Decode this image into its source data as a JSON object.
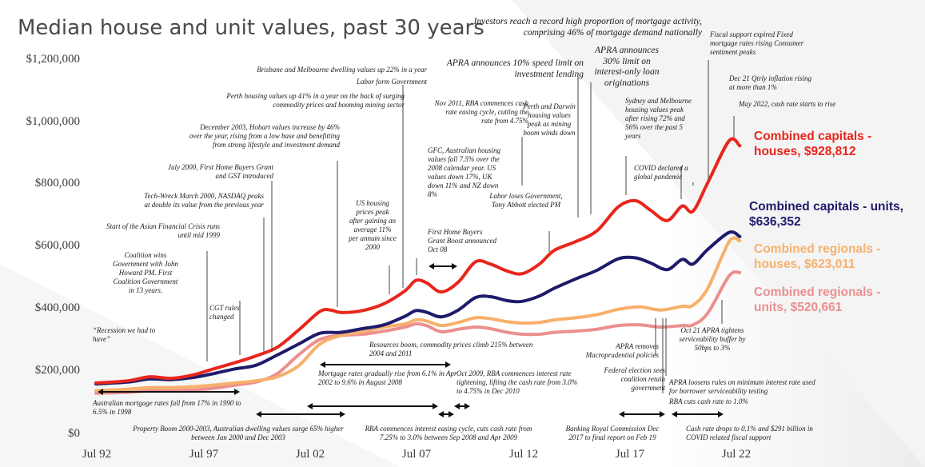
{
  "title": "Median house and unit values, past 30 years",
  "colors": {
    "houses": "#e8261c",
    "units": "#1e1b6b",
    "regional_houses": "#f7b06c",
    "regional_units": "#eb8f8f"
  },
  "chart_data": {
    "type": "line",
    "title": "Median house and unit values, past 30 years",
    "xlabel": "",
    "ylabel": "",
    "x_ticks": [
      "Jul 92",
      "Jul 97",
      "Jul 02",
      "Jul 07",
      "Jul 12",
      "Jul 17",
      "Jul 22"
    ],
    "y_ticks": [
      "$0",
      "$200,000",
      "$400,000",
      "$600,000",
      "$800,000",
      "$1,000,000",
      "$1,200,000"
    ],
    "ylim": [
      0,
      1200000
    ],
    "xlim": [
      1992.5,
      2023.0
    ],
    "grid": false,
    "series": [
      {
        "name": "Combined capitals - houses",
        "label": "Combined capitals -\nhouses, $928,812",
        "key": "houses",
        "points": [
          [
            1992.5,
            165000
          ],
          [
            1994,
            172000
          ],
          [
            1995,
            185000
          ],
          [
            1996,
            180000
          ],
          [
            1997,
            190000
          ],
          [
            1998,
            210000
          ],
          [
            1999,
            230000
          ],
          [
            2000,
            252000
          ],
          [
            2001,
            280000
          ],
          [
            2002,
            335000
          ],
          [
            2003,
            395000
          ],
          [
            2003.5,
            400000
          ],
          [
            2004,
            392000
          ],
          [
            2005,
            398000
          ],
          [
            2006,
            420000
          ],
          [
            2007,
            462000
          ],
          [
            2007.5,
            495000
          ],
          [
            2008,
            488000
          ],
          [
            2008.7,
            458000
          ],
          [
            2009.5,
            490000
          ],
          [
            2010.3,
            555000
          ],
          [
            2011,
            548000
          ],
          [
            2011.8,
            525000
          ],
          [
            2012.5,
            517000
          ],
          [
            2013.3,
            548000
          ],
          [
            2014,
            592000
          ],
          [
            2015,
            620000
          ],
          [
            2016,
            655000
          ],
          [
            2017,
            732000
          ],
          [
            2017.8,
            752000
          ],
          [
            2018.5,
            722000
          ],
          [
            2019.3,
            688000
          ],
          [
            2020,
            735000
          ],
          [
            2020.5,
            718000
          ],
          [
            2021.2,
            810000
          ],
          [
            2022.2,
            945000
          ],
          [
            2022.7,
            928812
          ]
        ]
      },
      {
        "name": "Combined capitals - units",
        "label": "Combined capitals - units,\n$636,352",
        "key": "units",
        "points": [
          [
            1992.5,
            162000
          ],
          [
            1994,
            168000
          ],
          [
            1995,
            178000
          ],
          [
            1996,
            176000
          ],
          [
            1997,
            182000
          ],
          [
            1998,
            195000
          ],
          [
            1999,
            210000
          ],
          [
            2000,
            222000
          ],
          [
            2001,
            255000
          ],
          [
            2002,
            290000
          ],
          [
            2003,
            325000
          ],
          [
            2004,
            328000
          ],
          [
            2005,
            340000
          ],
          [
            2006,
            352000
          ],
          [
            2007,
            380000
          ],
          [
            2007.5,
            398000
          ],
          [
            2008,
            393000
          ],
          [
            2008.7,
            378000
          ],
          [
            2009.5,
            400000
          ],
          [
            2010.3,
            440000
          ],
          [
            2011,
            443000
          ],
          [
            2011.8,
            430000
          ],
          [
            2012.5,
            428000
          ],
          [
            2013.3,
            445000
          ],
          [
            2014,
            470000
          ],
          [
            2015,
            500000
          ],
          [
            2016,
            528000
          ],
          [
            2017,
            565000
          ],
          [
            2017.8,
            568000
          ],
          [
            2018.5,
            552000
          ],
          [
            2019.3,
            530000
          ],
          [
            2020,
            563000
          ],
          [
            2020.5,
            548000
          ],
          [
            2021.2,
            595000
          ],
          [
            2022.2,
            650000
          ],
          [
            2022.7,
            636352
          ]
        ]
      },
      {
        "name": "Combined regionals - houses",
        "label": "Combined regionals -\nhouses, $623,011",
        "key": "regional_houses",
        "points": [
          [
            1992.5,
            140000
          ],
          [
            1994,
            145000
          ],
          [
            1995,
            150000
          ],
          [
            1996,
            150000
          ],
          [
            1997,
            153000
          ],
          [
            1998,
            158000
          ],
          [
            1999,
            165000
          ],
          [
            2000,
            172000
          ],
          [
            2001,
            185000
          ],
          [
            2002,
            220000
          ],
          [
            2003,
            290000
          ],
          [
            2004,
            318000
          ],
          [
            2005,
            330000
          ],
          [
            2006,
            345000
          ],
          [
            2007,
            355000
          ],
          [
            2007.5,
            368000
          ],
          [
            2008,
            365000
          ],
          [
            2008.7,
            350000
          ],
          [
            2009.5,
            360000
          ],
          [
            2010.3,
            375000
          ],
          [
            2011,
            372000
          ],
          [
            2011.8,
            362000
          ],
          [
            2012.5,
            358000
          ],
          [
            2013.3,
            360000
          ],
          [
            2014,
            368000
          ],
          [
            2015,
            375000
          ],
          [
            2016,
            385000
          ],
          [
            2017,
            402000
          ],
          [
            2018,
            410000
          ],
          [
            2019,
            400000
          ],
          [
            2020,
            412000
          ],
          [
            2020.5,
            415000
          ],
          [
            2021.2,
            470000
          ],
          [
            2022.2,
            620000
          ],
          [
            2022.7,
            623011
          ]
        ]
      },
      {
        "name": "Combined regionals - units",
        "label": "Combined regionals -\nunits, $520,661",
        "key": "regional_units",
        "points": [
          [
            1992.5,
            132000
          ],
          [
            1994,
            135000
          ],
          [
            1995,
            140000
          ],
          [
            1996,
            140000
          ],
          [
            1997,
            142000
          ],
          [
            1998,
            148000
          ],
          [
            1999,
            158000
          ],
          [
            2000,
            168000
          ],
          [
            2001,
            195000
          ],
          [
            2002,
            255000
          ],
          [
            2003,
            305000
          ],
          [
            2004,
            318000
          ],
          [
            2005,
            322000
          ],
          [
            2006,
            332000
          ],
          [
            2007,
            345000
          ],
          [
            2007.5,
            355000
          ],
          [
            2008,
            350000
          ],
          [
            2008.7,
            330000
          ],
          [
            2009.5,
            338000
          ],
          [
            2010.3,
            345000
          ],
          [
            2011,
            340000
          ],
          [
            2011.8,
            328000
          ],
          [
            2012.5,
            322000
          ],
          [
            2013.3,
            322000
          ],
          [
            2014,
            328000
          ],
          [
            2015,
            332000
          ],
          [
            2016,
            338000
          ],
          [
            2017,
            350000
          ],
          [
            2018,
            352000
          ],
          [
            2019,
            345000
          ],
          [
            2020,
            350000
          ],
          [
            2020.5,
            352000
          ],
          [
            2021.2,
            390000
          ],
          [
            2022.2,
            510000
          ],
          [
            2022.7,
            520661
          ]
        ]
      }
    ]
  },
  "annotations": [
    "“Recession we had to have”",
    "Start of the Asian Financial Crisis runs until mid 1999",
    "Coalition wins Government with John Howard PM. First Coalition Government in 13 years.",
    "CGT rules changed",
    "Tech-Wreck March 2000, NASDAQ peaks at double its value from the previous year",
    "July 2000, First Home Buyers Grant and GST introduced",
    "December 2003, Hobart values increase by 46% over the year, rising from a low base and benefitting from strong lifestyle and investment demand",
    "Perth housing values up 41% in a year on the back of surging commodity prices and booming mining sector",
    "Brisbane and Melbourne dwelling values up 22% in a year",
    "Labor form Government",
    "US housing prices peak after gaining an average 11% per annum since 2000",
    "GFC, Australian housing values fall 7.5% over the 2008 calendar year. US values down 17%, UK down 11% and NZ down 8%",
    "First Home Buyers Grant Boost announced Oct 08",
    "Nov 2011, RBA commences cash rate easing cycle, cutting the rate from 4.75%",
    "Labor loses Government, Tony Abbott elected PM",
    "Perth and Darwin housing values peak as mining boom winds down",
    "Investors reach a record high proportion of mortgage activity, comprising 46% of mortgage demand nationally",
    "APRA announces 10% speed limit on investment lending",
    "APRA announces 30% limit on interest-only loan originations",
    "Sydney and Melbourne housing values peak after rising 72% and 56% over the past 5 years",
    "COVID declared a global pandemic",
    "Fiscal support expired Fixed mortgage rates rising Consumer sentiment peaks",
    "Dec 21 Qtrly inflation rising at more than 1%",
    "May 2022, cash rate starts to rise",
    "Oct 21 APRA tightens serviceability buffer by 50bps to 3%",
    "APRA removes Macroprudential policies",
    "Federal election sees coalition retain government",
    "APRA loosens rules on minimum interest rate used for borrower serviceability testing",
    "RBA cuts cash rate to 1.0%",
    "Resources boom, commodity prices climb 215% between 2004 and 2011",
    "Mortgage rates gradually rise from 6.1% in Apr 2002 to 9.6% in August 2008",
    "Oct 2009, RBA commences interest rate tightening, lifting the cash rate from 3.0% to 4.75% in Dec 2010",
    "Australian mortgage rates fall from 17% in 1990 to 6.5% in 1998",
    "Property Boom 2000-2003, Australian dwelling values surge 65% higher between Jan 2000 and Dec 2003",
    "RBA commences interest easing cycle, cuts cash rate from 7.25% to 3.0% between Sep 2008 and Apr 2009",
    "Banking Royal Commission Dec 2017 to final report on Feb 19",
    "Cash rate drops to 0.1% and $291 billion in COVID related fiscal support"
  ]
}
